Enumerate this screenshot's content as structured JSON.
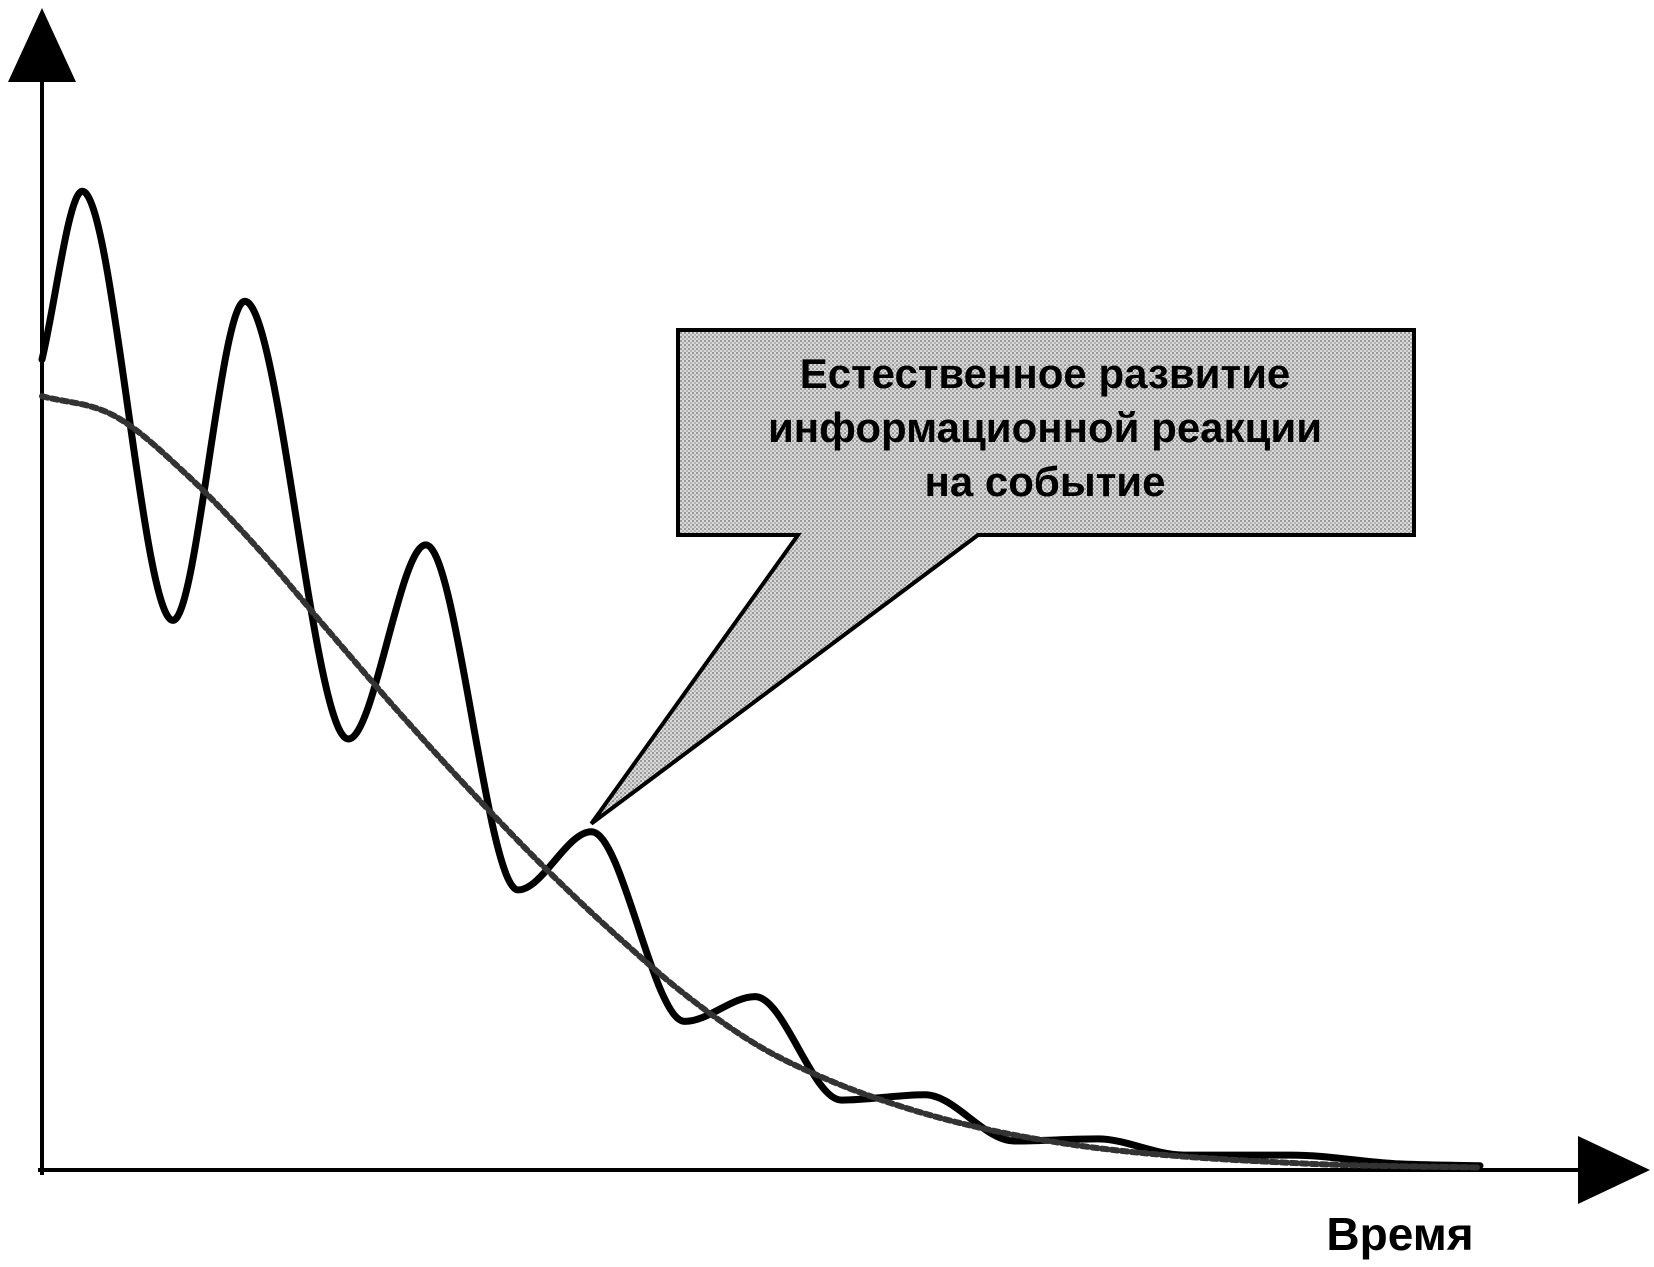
{
  "chart_data": {
    "type": "line",
    "title": "",
    "xlabel": "Время",
    "ylabel": "",
    "xlim": [
      0,
      100
    ],
    "ylim": [
      0,
      100
    ],
    "grid": false,
    "legend": "none",
    "colors": {
      "axes": "#000000",
      "solid_series": "#000000",
      "dashed_series": "#333333",
      "callout_fill": "#c8c8c8"
    },
    "series": [
      {
        "style": "solid",
        "x": [
          0,
          2.8,
          9.1,
          14.1,
          21.3,
          26.7,
          33.1,
          38.2,
          44.7,
          49.6,
          55.6,
          61.4,
          67.6,
          73.4,
          79.4,
          86.9,
          94.1,
          100
        ],
        "y": [
          75,
          90.6,
          50.8,
          80.4,
          39.8,
          57.8,
          25.8,
          31.2,
          13.6,
          15.9,
          6.3,
          6.8,
          2.5,
          2.7,
          1.2,
          1.2,
          0.4,
          0.2
        ]
      },
      {
        "style": "dashed",
        "x": [
          0,
          5,
          10,
          15,
          20,
          25,
          30,
          35,
          40,
          45,
          50,
          55,
          60,
          65,
          70,
          75,
          80,
          85,
          90,
          95,
          100
        ],
        "y": [
          71.6,
          69.8,
          64.4,
          57.5,
          49.7,
          42.0,
          34.7,
          27.8,
          21.5,
          15.8,
          11.2,
          8.0,
          5.6,
          3.8,
          2.5,
          1.6,
          1.0,
          0.6,
          0.3,
          0.15,
          0.05
        ]
      }
    ],
    "annotations": [
      {
        "lines": [
          "Естественное развитие",
          "информационной реакции",
          "на событие"
        ],
        "target_x": 38.2,
        "target_y": 31.2
      }
    ]
  }
}
